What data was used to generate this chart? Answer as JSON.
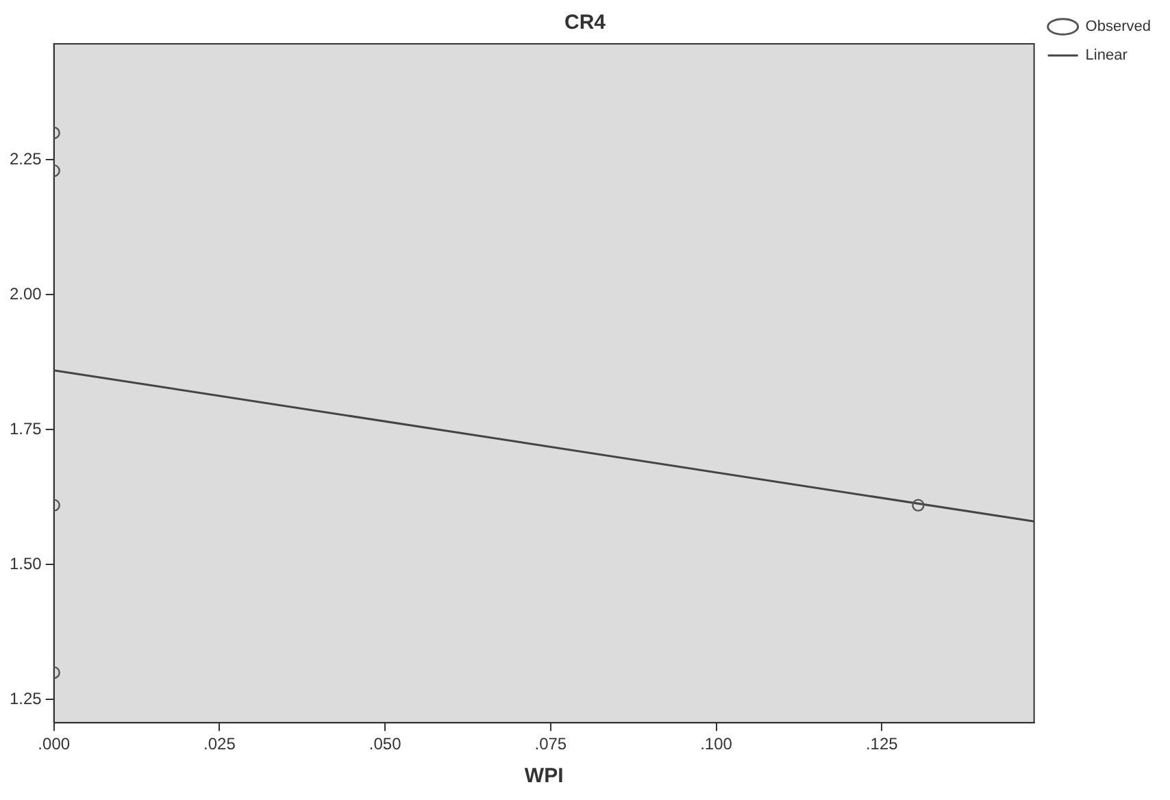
{
  "chart_data": {
    "type": "scatter",
    "title": "CR4",
    "xlabel": "WPI",
    "series": [
      {
        "name": "Observed",
        "type": "scatter",
        "color": "#555555",
        "x": [
          0,
          0,
          0,
          0,
          0.1305
        ],
        "values": [
          2.3,
          2.23,
          1.61,
          1.3,
          1.61
        ],
        "marker": "circle"
      },
      {
        "name": "Linear",
        "type": "line",
        "color": "#444444",
        "x": [
          0,
          0.148
        ],
        "values": [
          1.86,
          1.58
        ],
        "marker": "none"
      }
    ],
    "xlim": [
      0,
      0.148
    ],
    "ylim": [
      1.207,
      2.465
    ],
    "xticks": [
      {
        "value": 0,
        "label": ".000"
      },
      {
        "value": 0.025,
        "label": ".025"
      },
      {
        "value": 0.05,
        "label": ".050"
      },
      {
        "value": 0.075,
        "label": ".075"
      },
      {
        "value": 0.1,
        "label": ".100"
      },
      {
        "value": 0.125,
        "label": ".125"
      }
    ],
    "yticks": [
      {
        "value": 1.25,
        "label": "1.25"
      },
      {
        "value": 1.5,
        "label": "1.50"
      },
      {
        "value": 1.75,
        "label": "1.75"
      },
      {
        "value": 2,
        "label": "2.00"
      },
      {
        "value": 2.25,
        "label": "2.25"
      }
    ],
    "grid": false,
    "legend": "top right"
  }
}
